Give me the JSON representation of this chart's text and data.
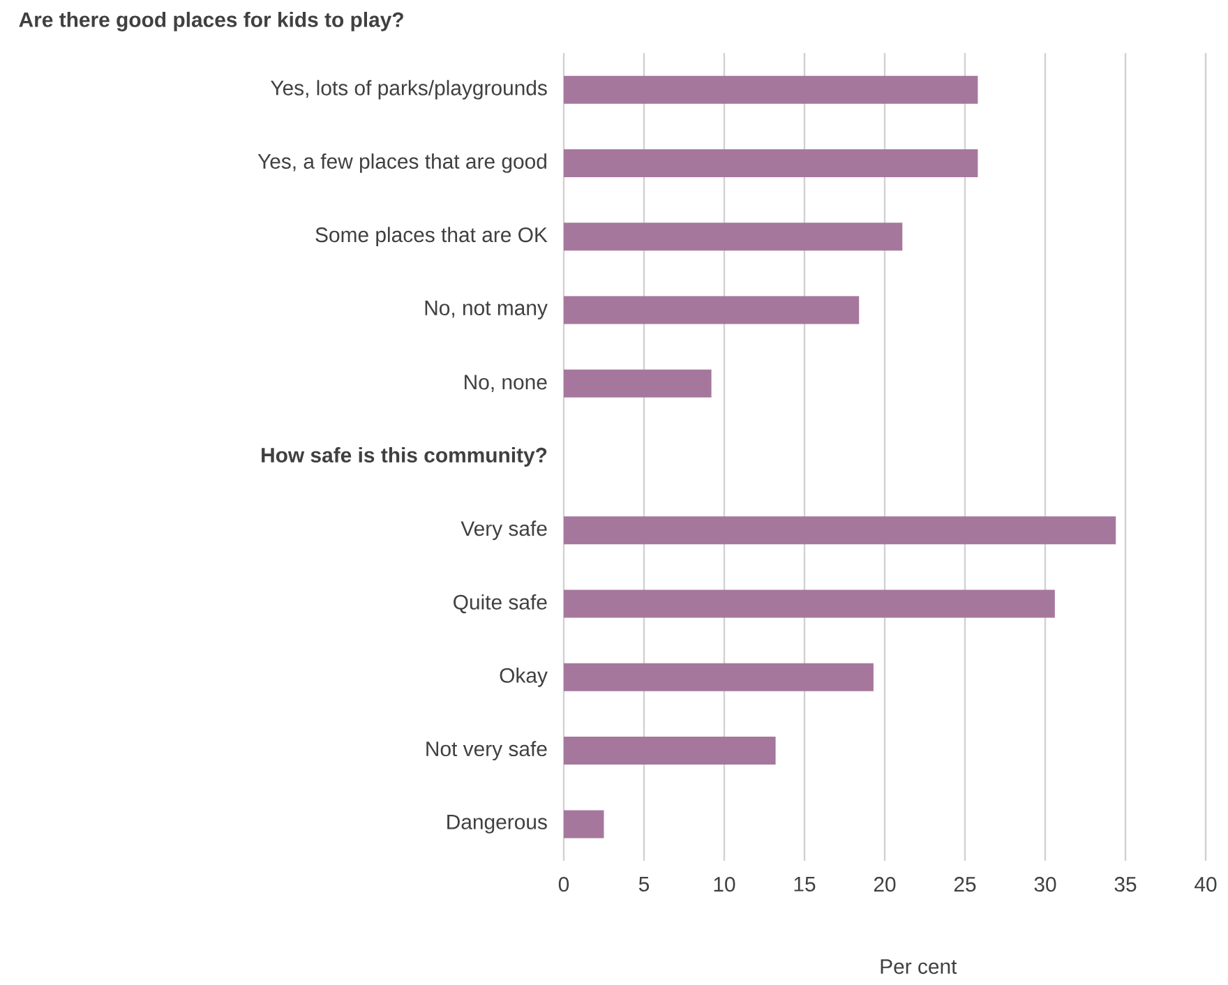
{
  "chart_data": {
    "type": "bar",
    "orientation": "horizontal",
    "title": "Are there good places for kids to play?",
    "xlabel": "Per cent",
    "categories": [
      "Yes, lots of parks/playgrounds",
      "Yes, a few places that are good",
      "Some places that are OK",
      "No, not many",
      "No, none",
      "How safe is this community?",
      "Very safe",
      "Quite safe",
      "Okay",
      "Not very safe",
      "Dangerous"
    ],
    "values": [
      25.8,
      25.8,
      21.1,
      18.4,
      9.2,
      null,
      34.4,
      30.6,
      19.3,
      13.2,
      2.5
    ],
    "color": "#a6779c",
    "xlim": [
      0,
      40
    ],
    "xticks": [
      0,
      5,
      10,
      15,
      20,
      25,
      30,
      35,
      40
    ],
    "grid": "x"
  }
}
